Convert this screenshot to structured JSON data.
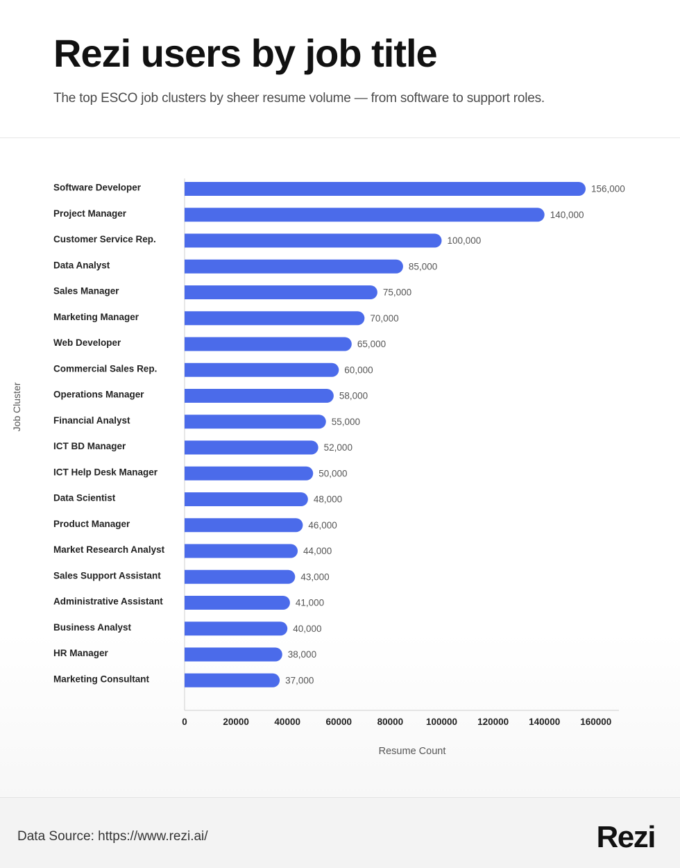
{
  "header": {
    "title": "Rezi users by job title",
    "subtitle": "The top ESCO job clusters by sheer resume volume — from software to support roles."
  },
  "colors": {
    "bar": "#4b6bea",
    "axis": "#cfcfcf",
    "label": "#222222",
    "value": "#555555"
  },
  "chart_data": {
    "type": "bar",
    "orientation": "horizontal",
    "title": "Rezi users by job title",
    "xlabel": "Resume Count",
    "ylabel": "Job Cluster",
    "xlim": [
      0,
      170000
    ],
    "xticks": [
      0,
      20000,
      40000,
      60000,
      80000,
      100000,
      120000,
      140000,
      160000
    ],
    "grid": false,
    "categories": [
      "Software Developer",
      "Project Manager",
      "Customer Service Rep.",
      "Data Analyst",
      "Sales Manager",
      "Marketing Manager",
      "Web Developer",
      "Commercial Sales Rep.",
      "Operations Manager",
      "Financial Analyst",
      "ICT BD Manager",
      "ICT Help Desk Manager",
      "Data Scientist",
      "Product Manager",
      "Market Research Analyst",
      "Sales Support Assistant",
      "Administrative Assistant",
      "Business Analyst",
      "HR Manager",
      "Marketing Consultant"
    ],
    "values": [
      156000,
      140000,
      100000,
      85000,
      75000,
      70000,
      65000,
      60000,
      58000,
      55000,
      52000,
      50000,
      48000,
      46000,
      44000,
      43000,
      41000,
      40000,
      38000,
      37000
    ],
    "value_labels": [
      "156,000",
      "140,000",
      "100,000",
      "85,000",
      "75,000",
      "70,000",
      "65,000",
      "60,000",
      "58,000",
      "55,000",
      "52,000",
      "50,000",
      "48,000",
      "46,000",
      "44,000",
      "43,000",
      "41,000",
      "40,000",
      "38,000",
      "37,000"
    ]
  },
  "footer": {
    "source": "Data Source: https://www.rezi.ai/",
    "logo": "Rezi"
  }
}
